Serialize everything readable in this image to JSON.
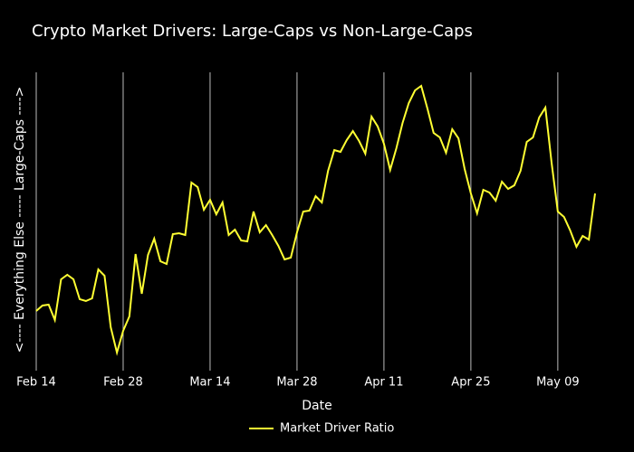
{
  "chart_data": {
    "type": "line",
    "title": "Crypto Market Drivers: Large-Caps vs Non-Large-Caps",
    "x_label": "Date",
    "y_label": "<---- Everything Else     -----     Large-Caps ---->",
    "x": [
      "Feb 14",
      "Feb 15",
      "Feb 16",
      "Feb 17",
      "Feb 18",
      "Feb 19",
      "Feb 20",
      "Feb 21",
      "Feb 22",
      "Feb 23",
      "Feb 24",
      "Feb 25",
      "Feb 26",
      "Feb 27",
      "Feb 28",
      "Mar 1",
      "Mar 2",
      "Mar 3",
      "Mar 4",
      "Mar 5",
      "Mar 6",
      "Mar 7",
      "Mar 8",
      "Mar 9",
      "Mar 10",
      "Mar 11",
      "Mar 12",
      "Mar 13",
      "Mar 14",
      "Mar 15",
      "Mar 16",
      "Mar 17",
      "Mar 18",
      "Mar 19",
      "Mar 20",
      "Mar 21",
      "Mar 22",
      "Mar 23",
      "Mar 24",
      "Mar 25",
      "Mar 26",
      "Mar 27",
      "Mar 28",
      "Mar 29",
      "Mar 30",
      "Mar 31",
      "Apr 1",
      "Apr 2",
      "Apr 3",
      "Apr 4",
      "Apr 5",
      "Apr 6",
      "Apr 7",
      "Apr 8",
      "Apr 9",
      "Apr 10",
      "Apr 11",
      "Apr 12",
      "Apr 13",
      "Apr 14",
      "Apr 15",
      "Apr 16",
      "Apr 17",
      "Apr 18",
      "Apr 19",
      "Apr 20",
      "Apr 21",
      "Apr 22",
      "Apr 23",
      "Apr 24",
      "Apr 25",
      "Apr 26",
      "Apr 27",
      "Apr 28",
      "Apr 29",
      "Apr 30",
      "May 1",
      "May 2",
      "May 3",
      "May 4",
      "May 5",
      "May 6",
      "May 7",
      "May 8",
      "May 9",
      "May 10",
      "May 11",
      "May 12",
      "May 13",
      "May 14",
      "May 15"
    ],
    "series": [
      {
        "name": "Market Driver Ratio",
        "color": "#ffff33",
        "values": [
          61,
          67,
          68,
          51,
          96,
          101,
          96,
          74,
          72,
          75,
          107,
          100,
          43,
          15,
          39,
          55,
          124,
          80,
          123,
          141,
          116,
          113,
          146,
          147,
          145,
          203,
          198,
          173,
          184,
          168,
          181,
          145,
          151,
          139,
          138,
          171,
          148,
          156,
          145,
          133,
          118,
          120,
          148,
          171,
          172,
          188,
          181,
          216,
          239,
          237,
          250,
          260,
          249,
          235,
          276,
          265,
          246,
          217,
          241,
          269,
          291,
          305,
          310,
          285,
          258,
          253,
          236,
          262,
          252,
          218,
          191,
          169,
          195,
          192,
          183,
          204,
          196,
          200,
          216,
          248,
          253,
          275,
          286,
          225,
          171,
          165,
          150,
          132,
          144,
          140,
          191
        ]
      }
    ],
    "ylim": [
      0,
      325
    ],
    "xticks": [
      "Feb 14",
      "Feb 28",
      "Mar 14",
      "Mar 28",
      "Apr 11",
      "Apr 25",
      "May 09"
    ],
    "grid": true,
    "legend": "bottom"
  }
}
